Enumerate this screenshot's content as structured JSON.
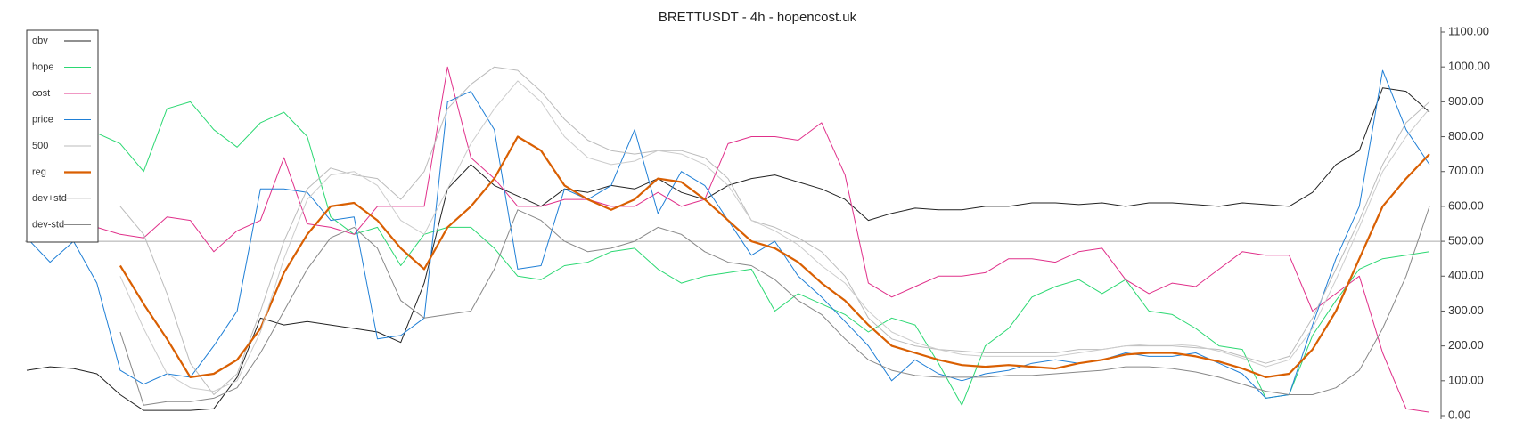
{
  "chart_data": {
    "type": "line",
    "title": "BRETTUSDT - 4h - hopencost.uk",
    "ylim": [
      0,
      1100
    ],
    "yticks": [
      {
        "value": 0,
        "label": "0.00"
      },
      {
        "value": 100,
        "label": "100.00"
      },
      {
        "value": 200,
        "label": "200.00"
      },
      {
        "value": 300,
        "label": "300.00"
      },
      {
        "value": 400,
        "label": "400.00"
      },
      {
        "value": 500,
        "label": "500.00"
      },
      {
        "value": 600,
        "label": "600.00"
      },
      {
        "value": 700,
        "label": "700.00"
      },
      {
        "value": 800,
        "label": "800.00"
      },
      {
        "value": 900,
        "label": "900.00"
      },
      {
        "value": 1000,
        "label": "1000.00"
      },
      {
        "value": 1100,
        "label": "1100.00"
      }
    ],
    "reference_line": 500,
    "legend": "upper left",
    "series": [
      {
        "name": "obv",
        "color": "#222222",
        "width": 1,
        "values": [
          130,
          140,
          135,
          120,
          60,
          15,
          15,
          15,
          20,
          110,
          280,
          260,
          270,
          260,
          250,
          240,
          210,
          380,
          650,
          720,
          660,
          630,
          600,
          650,
          640,
          660,
          650,
          680,
          640,
          620,
          660,
          680,
          690,
          670,
          650,
          620,
          560,
          580,
          595,
          590,
          590,
          600,
          600,
          610,
          610,
          605,
          610,
          600,
          610,
          610,
          605,
          600,
          610,
          605,
          600,
          640,
          720,
          760,
          940,
          930,
          870
        ]
      },
      {
        "name": "hope",
        "color": "#2bd872",
        "width": 1,
        "values": [
          850,
          840,
          830,
          810,
          780,
          700,
          880,
          900,
          820,
          770,
          840,
          870,
          800,
          570,
          520,
          540,
          430,
          520,
          540,
          540,
          480,
          400,
          390,
          430,
          440,
          470,
          480,
          420,
          380,
          400,
          410,
          420,
          300,
          350,
          320,
          290,
          240,
          280,
          260,
          150,
          30,
          200,
          250,
          340,
          370,
          390,
          350,
          390,
          300,
          290,
          250,
          200,
          190,
          50,
          60,
          230,
          330,
          420,
          450,
          460,
          470
        ]
      },
      {
        "name": "cost",
        "color": "#e0308a",
        "width": 1,
        "values": [
          680,
          680,
          660,
          540,
          520,
          510,
          570,
          560,
          470,
          530,
          560,
          740,
          550,
          540,
          520,
          600,
          600,
          600,
          1000,
          740,
          680,
          600,
          600,
          620,
          620,
          600,
          600,
          640,
          600,
          620,
          780,
          800,
          800,
          790,
          840,
          690,
          380,
          340,
          370,
          400,
          400,
          410,
          450,
          450,
          440,
          470,
          480,
          390,
          350,
          380,
          370,
          420,
          470,
          460,
          460,
          300,
          350,
          400,
          180,
          20,
          10
        ]
      },
      {
        "name": "price",
        "color": "#1f7fd6",
        "width": 1,
        "values": [
          510,
          440,
          500,
          380,
          130,
          90,
          120,
          110,
          200,
          300,
          650,
          650,
          640,
          560,
          570,
          220,
          230,
          280,
          900,
          930,
          820,
          420,
          430,
          650,
          620,
          660,
          820,
          580,
          700,
          660,
          560,
          460,
          500,
          400,
          340,
          270,
          200,
          100,
          160,
          120,
          100,
          120,
          130,
          150,
          160,
          150,
          160,
          180,
          170,
          170,
          180,
          150,
          120,
          50,
          60,
          260,
          450,
          600,
          990,
          820,
          720
        ]
      },
      {
        "name": "500",
        "color": "#bbbbbb",
        "width": 1,
        "values": [
          null,
          null,
          null,
          null,
          600,
          520,
          350,
          150,
          60,
          120,
          300,
          500,
          650,
          710,
          690,
          680,
          620,
          700,
          880,
          950,
          1000,
          990,
          930,
          850,
          790,
          760,
          750,
          760,
          760,
          740,
          680,
          560,
          540,
          510,
          470,
          400,
          280,
          220,
          200,
          190,
          185,
          180,
          180,
          180,
          180,
          190,
          190,
          200,
          200,
          200,
          195,
          190,
          170,
          150,
          170,
          280,
          420,
          560,
          720,
          840,
          900
        ]
      },
      {
        "name": "reg",
        "color": "#d95f02",
        "width": 2.2,
        "values": [
          null,
          null,
          null,
          null,
          430,
          320,
          220,
          110,
          120,
          160,
          250,
          410,
          520,
          600,
          610,
          560,
          480,
          420,
          540,
          600,
          680,
          800,
          760,
          660,
          620,
          590,
          620,
          680,
          670,
          620,
          560,
          500,
          480,
          440,
          380,
          330,
          260,
          200,
          180,
          160,
          145,
          140,
          145,
          140,
          135,
          150,
          160,
          175,
          180,
          180,
          170,
          155,
          135,
          110,
          120,
          190,
          300,
          450,
          600,
          680,
          750
        ]
      },
      {
        "name": "dev+std",
        "color": "#cccccc",
        "width": 1,
        "values": [
          null,
          null,
          null,
          null,
          400,
          250,
          120,
          80,
          70,
          100,
          240,
          450,
          620,
          690,
          700,
          660,
          560,
          520,
          650,
          780,
          880,
          960,
          900,
          800,
          740,
          720,
          730,
          760,
          750,
          720,
          660,
          560,
          530,
          490,
          430,
          380,
          300,
          240,
          210,
          190,
          175,
          170,
          170,
          170,
          170,
          180,
          190,
          200,
          205,
          205,
          200,
          185,
          165,
          140,
          160,
          250,
          390,
          540,
          700,
          800,
          880
        ]
      },
      {
        "name": "dev-std",
        "color": "#888888",
        "width": 1,
        "values": [
          null,
          null,
          null,
          null,
          240,
          30,
          40,
          40,
          50,
          80,
          180,
          300,
          420,
          510,
          540,
          480,
          330,
          280,
          290,
          300,
          420,
          590,
          560,
          500,
          470,
          480,
          500,
          540,
          520,
          470,
          440,
          430,
          390,
          330,
          290,
          220,
          160,
          130,
          115,
          110,
          110,
          110,
          115,
          115,
          120,
          125,
          130,
          140,
          140,
          135,
          125,
          110,
          90,
          70,
          60,
          60,
          80,
          130,
          250,
          400,
          600
        ]
      }
    ]
  }
}
